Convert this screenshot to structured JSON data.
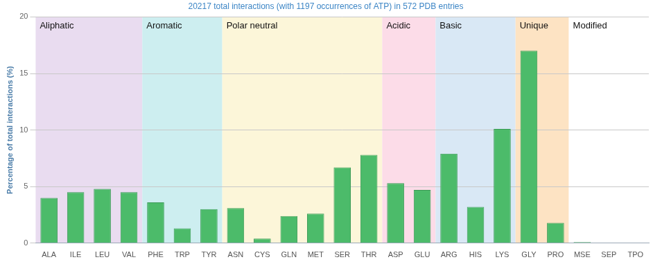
{
  "chart_data": {
    "type": "bar",
    "subtitle": "20217 total interactions (with 1197 occurrences of ATP) in 572 PDB entries",
    "y_label": "Percentage of total interactions (%)",
    "categories": [
      "ALA",
      "ILE",
      "LEU",
      "VAL",
      "PHE",
      "TRP",
      "TYR",
      "ASN",
      "CYS",
      "GLN",
      "MET",
      "SER",
      "THR",
      "ASP",
      "GLU",
      "ARG",
      "HIS",
      "LYS",
      "GLY",
      "PRO",
      "MSE",
      "SEP",
      "TPO"
    ],
    "values": [
      4.0,
      4.5,
      4.8,
      4.5,
      3.6,
      1.3,
      3.0,
      3.1,
      0.4,
      2.4,
      2.6,
      6.7,
      7.8,
      5.3,
      4.7,
      7.9,
      3.2,
      10.1,
      17.0,
      1.8,
      0.1,
      0,
      0
    ],
    "color": "#4cbb6a",
    "ylim": [
      0,
      20
    ],
    "yticks": [
      0,
      5,
      10,
      15,
      20
    ],
    "grid": true,
    "groups": [
      {
        "name": "Aliphatic",
        "color": "#e9dcf0",
        "categories": [
          "ALA",
          "ILE",
          "LEU",
          "VAL"
        ]
      },
      {
        "name": "Aromatic",
        "color": "#cdeef0",
        "categories": [
          "PHE",
          "TRP",
          "TYR"
        ]
      },
      {
        "name": "Polar neutral",
        "color": "#fcf6d9",
        "categories": [
          "ASN",
          "CYS",
          "GLN",
          "MET",
          "SER",
          "THR"
        ]
      },
      {
        "name": "Acidic",
        "color": "#fcdce8",
        "categories": [
          "ASP",
          "GLU"
        ]
      },
      {
        "name": "Basic",
        "color": "#d9e8f5",
        "categories": [
          "ARG",
          "HIS",
          "LYS"
        ]
      },
      {
        "name": "Unique",
        "color": "#fde3c3",
        "categories": [
          "GLY",
          "PRO"
        ]
      },
      {
        "name": "Modified",
        "color": "#ffffff",
        "categories": [
          "MSE",
          "SEP",
          "TPO"
        ]
      }
    ]
  }
}
